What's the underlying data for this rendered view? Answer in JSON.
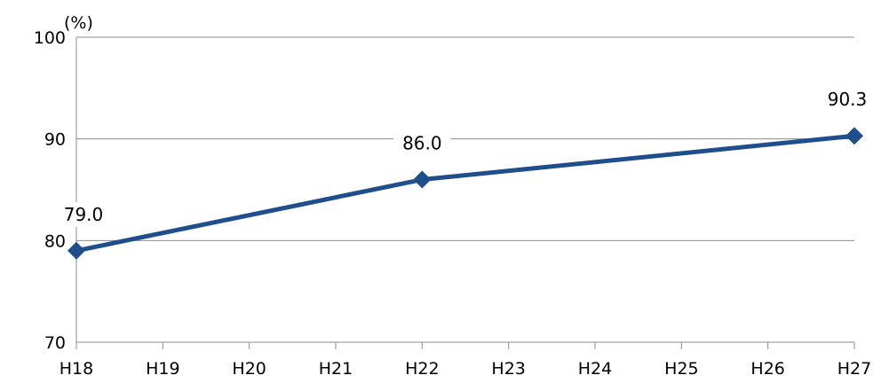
{
  "chart_data": {
    "type": "line",
    "categories": [
      "H18",
      "H19",
      "H20",
      "H21",
      "H22",
      "H23",
      "H24",
      "H25",
      "H26",
      "H27"
    ],
    "series": [
      {
        "color": "#1f4e8c",
        "marker": "diamond",
        "points": [
          {
            "x": "H18",
            "y": 79.0,
            "label": "79.0"
          },
          {
            "x": "H22",
            "y": 86.0,
            "label": "86.0"
          },
          {
            "x": "H27",
            "y": 90.3,
            "label": "90.3"
          }
        ]
      }
    ],
    "ylim": [
      70,
      100
    ],
    "yticks": [
      70,
      80,
      90,
      100
    ],
    "y_unit_label": "(%)",
    "grid": "horizontal",
    "legend": "none"
  }
}
